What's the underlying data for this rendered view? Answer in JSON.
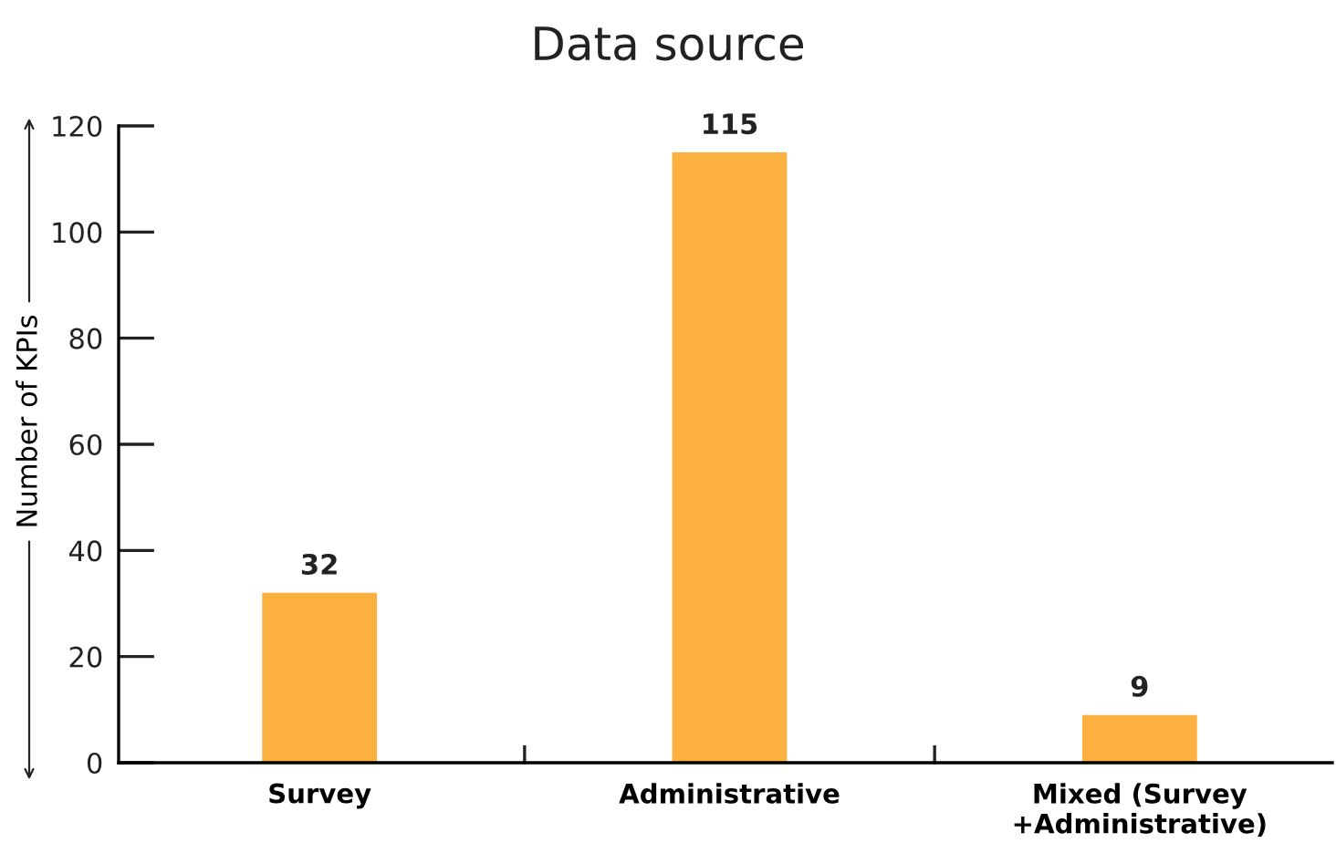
{
  "chart_data": {
    "type": "bar",
    "title": "Data source",
    "ylabel": "Number of KPIs",
    "categories": [
      "Survey",
      "Administrative",
      "Mixed (Survey\n+Administrative)"
    ],
    "values": [
      32,
      115,
      9
    ],
    "color": "#fbb040",
    "ylim": [
      0,
      120
    ],
    "yticks": [
      0,
      20,
      40,
      60,
      80,
      100,
      120
    ],
    "grid": false,
    "data_labels": true
  }
}
